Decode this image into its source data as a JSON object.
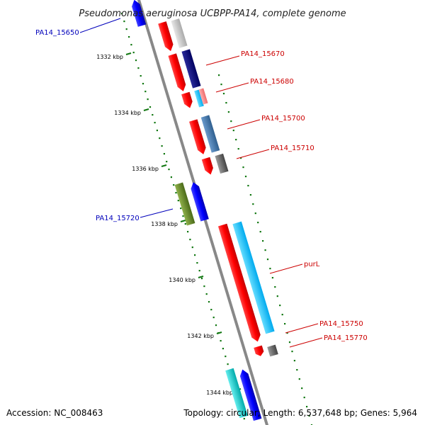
{
  "title": "Pseudomonas aeruginosa UCBPP-PA14, complete genome",
  "footer": {
    "accession": "Accession: NC_008463",
    "topology": "Topology: circular; Length: 6,537,648 bp; Genes: 5,964"
  },
  "ticks": [
    {
      "label": "1332 kbp"
    },
    {
      "label": "1334 kbp"
    },
    {
      "label": "1336 kbp"
    },
    {
      "label": "1338 kbp"
    },
    {
      "label": "1340 kbp"
    },
    {
      "label": "1342 kbp"
    },
    {
      "label": "1344 kbp"
    }
  ],
  "gene_labels": [
    {
      "text": "PA14_15650",
      "strand": "reverse",
      "color": "#0000bb"
    },
    {
      "text": "PA14_15670",
      "strand": "forward",
      "color": "#cc0000"
    },
    {
      "text": "PA14_15680",
      "strand": "forward",
      "color": "#cc0000"
    },
    {
      "text": "PA14_15700",
      "strand": "forward",
      "color": "#cc0000"
    },
    {
      "text": "PA14_15710",
      "strand": "forward",
      "color": "#cc0000"
    },
    {
      "text": "PA14_15720",
      "strand": "reverse",
      "color": "#0000bb"
    },
    {
      "text": "purL",
      "strand": "forward",
      "color": "#cc0000"
    },
    {
      "text": "PA14_15750",
      "strand": "forward",
      "color": "#cc0000"
    },
    {
      "text": "PA14_15770",
      "strand": "forward",
      "color": "#cc0000"
    }
  ],
  "colors": {
    "forward_cds": "#ff0000",
    "reverse_cds": "#0000ff",
    "backbone": "#888888",
    "ticks": "#117711"
  }
}
